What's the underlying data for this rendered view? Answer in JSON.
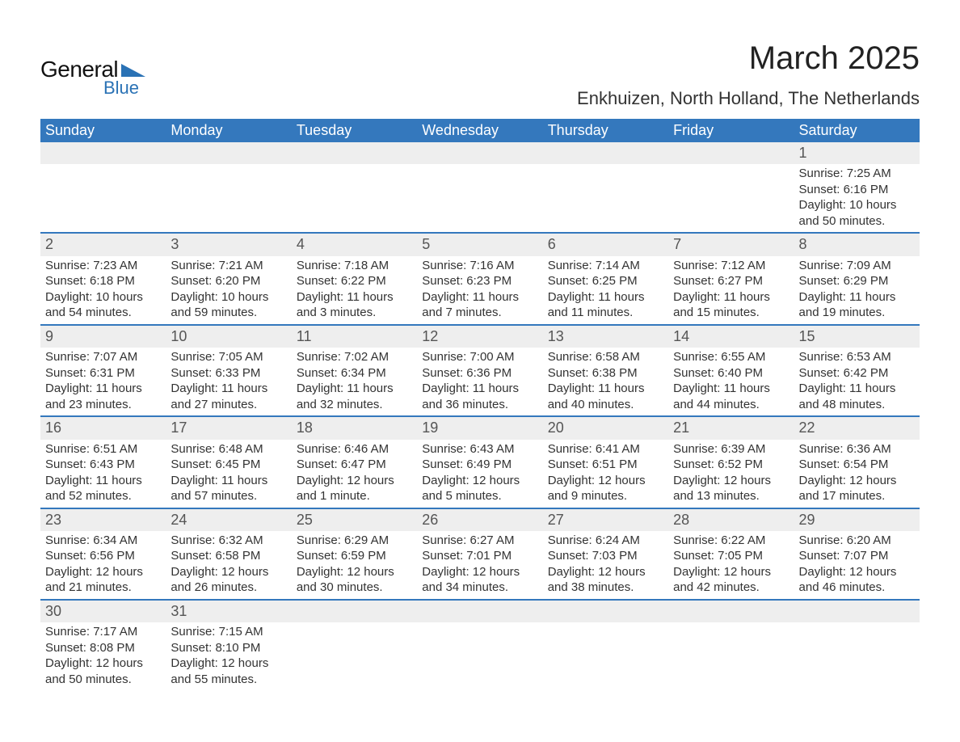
{
  "logo": {
    "text1": "General",
    "text2": "Blue",
    "flag_color": "#2a72b5",
    "text1_color": "#111111"
  },
  "title": "March 2025",
  "location": "Enkhuizen, North Holland, The Netherlands",
  "colors": {
    "header_bg": "#3478bd",
    "header_text": "#ffffff",
    "daynum_bg": "#eeeeee",
    "row_border": "#3478bd",
    "body_text": "#333333",
    "background": "#ffffff"
  },
  "typography": {
    "title_fontsize": 40,
    "location_fontsize": 22,
    "dayheader_fontsize": 18,
    "daynum_fontsize": 18,
    "cell_fontsize": 15,
    "font_family": "Arial"
  },
  "day_headers": [
    "Sunday",
    "Monday",
    "Tuesday",
    "Wednesday",
    "Thursday",
    "Friday",
    "Saturday"
  ],
  "weeks": [
    [
      null,
      null,
      null,
      null,
      null,
      null,
      {
        "n": "1",
        "sr": "Sunrise: 7:25 AM",
        "ss": "Sunset: 6:16 PM",
        "d1": "Daylight: 10 hours",
        "d2": "and 50 minutes."
      }
    ],
    [
      {
        "n": "2",
        "sr": "Sunrise: 7:23 AM",
        "ss": "Sunset: 6:18 PM",
        "d1": "Daylight: 10 hours",
        "d2": "and 54 minutes."
      },
      {
        "n": "3",
        "sr": "Sunrise: 7:21 AM",
        "ss": "Sunset: 6:20 PM",
        "d1": "Daylight: 10 hours",
        "d2": "and 59 minutes."
      },
      {
        "n": "4",
        "sr": "Sunrise: 7:18 AM",
        "ss": "Sunset: 6:22 PM",
        "d1": "Daylight: 11 hours",
        "d2": "and 3 minutes."
      },
      {
        "n": "5",
        "sr": "Sunrise: 7:16 AM",
        "ss": "Sunset: 6:23 PM",
        "d1": "Daylight: 11 hours",
        "d2": "and 7 minutes."
      },
      {
        "n": "6",
        "sr": "Sunrise: 7:14 AM",
        "ss": "Sunset: 6:25 PM",
        "d1": "Daylight: 11 hours",
        "d2": "and 11 minutes."
      },
      {
        "n": "7",
        "sr": "Sunrise: 7:12 AM",
        "ss": "Sunset: 6:27 PM",
        "d1": "Daylight: 11 hours",
        "d2": "and 15 minutes."
      },
      {
        "n": "8",
        "sr": "Sunrise: 7:09 AM",
        "ss": "Sunset: 6:29 PM",
        "d1": "Daylight: 11 hours",
        "d2": "and 19 minutes."
      }
    ],
    [
      {
        "n": "9",
        "sr": "Sunrise: 7:07 AM",
        "ss": "Sunset: 6:31 PM",
        "d1": "Daylight: 11 hours",
        "d2": "and 23 minutes."
      },
      {
        "n": "10",
        "sr": "Sunrise: 7:05 AM",
        "ss": "Sunset: 6:33 PM",
        "d1": "Daylight: 11 hours",
        "d2": "and 27 minutes."
      },
      {
        "n": "11",
        "sr": "Sunrise: 7:02 AM",
        "ss": "Sunset: 6:34 PM",
        "d1": "Daylight: 11 hours",
        "d2": "and 32 minutes."
      },
      {
        "n": "12",
        "sr": "Sunrise: 7:00 AM",
        "ss": "Sunset: 6:36 PM",
        "d1": "Daylight: 11 hours",
        "d2": "and 36 minutes."
      },
      {
        "n": "13",
        "sr": "Sunrise: 6:58 AM",
        "ss": "Sunset: 6:38 PM",
        "d1": "Daylight: 11 hours",
        "d2": "and 40 minutes."
      },
      {
        "n": "14",
        "sr": "Sunrise: 6:55 AM",
        "ss": "Sunset: 6:40 PM",
        "d1": "Daylight: 11 hours",
        "d2": "and 44 minutes."
      },
      {
        "n": "15",
        "sr": "Sunrise: 6:53 AM",
        "ss": "Sunset: 6:42 PM",
        "d1": "Daylight: 11 hours",
        "d2": "and 48 minutes."
      }
    ],
    [
      {
        "n": "16",
        "sr": "Sunrise: 6:51 AM",
        "ss": "Sunset: 6:43 PM",
        "d1": "Daylight: 11 hours",
        "d2": "and 52 minutes."
      },
      {
        "n": "17",
        "sr": "Sunrise: 6:48 AM",
        "ss": "Sunset: 6:45 PM",
        "d1": "Daylight: 11 hours",
        "d2": "and 57 minutes."
      },
      {
        "n": "18",
        "sr": "Sunrise: 6:46 AM",
        "ss": "Sunset: 6:47 PM",
        "d1": "Daylight: 12 hours",
        "d2": "and 1 minute."
      },
      {
        "n": "19",
        "sr": "Sunrise: 6:43 AM",
        "ss": "Sunset: 6:49 PM",
        "d1": "Daylight: 12 hours",
        "d2": "and 5 minutes."
      },
      {
        "n": "20",
        "sr": "Sunrise: 6:41 AM",
        "ss": "Sunset: 6:51 PM",
        "d1": "Daylight: 12 hours",
        "d2": "and 9 minutes."
      },
      {
        "n": "21",
        "sr": "Sunrise: 6:39 AM",
        "ss": "Sunset: 6:52 PM",
        "d1": "Daylight: 12 hours",
        "d2": "and 13 minutes."
      },
      {
        "n": "22",
        "sr": "Sunrise: 6:36 AM",
        "ss": "Sunset: 6:54 PM",
        "d1": "Daylight: 12 hours",
        "d2": "and 17 minutes."
      }
    ],
    [
      {
        "n": "23",
        "sr": "Sunrise: 6:34 AM",
        "ss": "Sunset: 6:56 PM",
        "d1": "Daylight: 12 hours",
        "d2": "and 21 minutes."
      },
      {
        "n": "24",
        "sr": "Sunrise: 6:32 AM",
        "ss": "Sunset: 6:58 PM",
        "d1": "Daylight: 12 hours",
        "d2": "and 26 minutes."
      },
      {
        "n": "25",
        "sr": "Sunrise: 6:29 AM",
        "ss": "Sunset: 6:59 PM",
        "d1": "Daylight: 12 hours",
        "d2": "and 30 minutes."
      },
      {
        "n": "26",
        "sr": "Sunrise: 6:27 AM",
        "ss": "Sunset: 7:01 PM",
        "d1": "Daylight: 12 hours",
        "d2": "and 34 minutes."
      },
      {
        "n": "27",
        "sr": "Sunrise: 6:24 AM",
        "ss": "Sunset: 7:03 PM",
        "d1": "Daylight: 12 hours",
        "d2": "and 38 minutes."
      },
      {
        "n": "28",
        "sr": "Sunrise: 6:22 AM",
        "ss": "Sunset: 7:05 PM",
        "d1": "Daylight: 12 hours",
        "d2": "and 42 minutes."
      },
      {
        "n": "29",
        "sr": "Sunrise: 6:20 AM",
        "ss": "Sunset: 7:07 PM",
        "d1": "Daylight: 12 hours",
        "d2": "and 46 minutes."
      }
    ],
    [
      {
        "n": "30",
        "sr": "Sunrise: 7:17 AM",
        "ss": "Sunset: 8:08 PM",
        "d1": "Daylight: 12 hours",
        "d2": "and 50 minutes."
      },
      {
        "n": "31",
        "sr": "Sunrise: 7:15 AM",
        "ss": "Sunset: 8:10 PM",
        "d1": "Daylight: 12 hours",
        "d2": "and 55 minutes."
      },
      null,
      null,
      null,
      null,
      null
    ]
  ]
}
